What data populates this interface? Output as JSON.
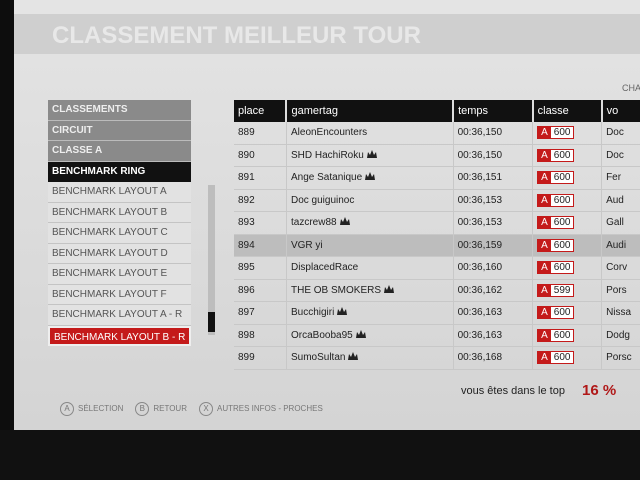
{
  "header": {
    "title": "CLASSEMENT MEILLEUR TOUR",
    "corner_label": "CHA"
  },
  "menu": {
    "filters": [
      "CLASSEMENTS",
      "CIRCUIT",
      "CLASSE A"
    ],
    "track": "BENCHMARK RING",
    "layouts": [
      "BENCHMARK LAYOUT A",
      "BENCHMARK LAYOUT B",
      "BENCHMARK LAYOUT C",
      "BENCHMARK LAYOUT D",
      "BENCHMARK LAYOUT E",
      "BENCHMARK LAYOUT F",
      "BENCHMARK LAYOUT A - R"
    ],
    "selected_layout": "BENCHMARK LAYOUT B - R"
  },
  "table": {
    "columns": [
      "place",
      "gamertag",
      "temps",
      "classe",
      "vo"
    ],
    "rows": [
      {
        "place": 889,
        "gamertag": "AleonEncounters",
        "temps": "00:36,150",
        "class_letter": "A",
        "class_number": 600,
        "car": "Doc"
      },
      {
        "place": 890,
        "gamertag": "SHD HachiRoku",
        "temps": "00:36,150",
        "class_letter": "A",
        "class_number": 600,
        "car": "Doc"
      },
      {
        "place": 891,
        "gamertag": "Ange Satanique",
        "temps": "00:36,151",
        "class_letter": "A",
        "class_number": 600,
        "car": "Fer"
      },
      {
        "place": 892,
        "gamertag": "Doc guiguinoc",
        "temps": "00:36,153",
        "class_letter": "A",
        "class_number": 600,
        "car": "Aud"
      },
      {
        "place": 893,
        "gamertag": "tazcrew88",
        "temps": "00:36,153",
        "class_letter": "A",
        "class_number": 600,
        "car": "Gall"
      },
      {
        "place": 894,
        "gamertag": "VGR yi",
        "temps": "00:36,159",
        "class_letter": "A",
        "class_number": 600,
        "car": "Audi"
      },
      {
        "place": 895,
        "gamertag": "DisplacedRace",
        "temps": "00:36,160",
        "class_letter": "A",
        "class_number": 600,
        "car": "Corv"
      },
      {
        "place": 896,
        "gamertag": "THE OB SMOKERS",
        "temps": "00:36,162",
        "class_letter": "A",
        "class_number": 599,
        "car": "Pors"
      },
      {
        "place": 897,
        "gamertag": "Bucchigiri",
        "temps": "00:36,163",
        "class_letter": "A",
        "class_number": 600,
        "car": "Nissa"
      },
      {
        "place": 898,
        "gamertag": "OrcaBooba95",
        "temps": "00:36,163",
        "class_letter": "A",
        "class_number": 600,
        "car": "Dodg"
      },
      {
        "place": 899,
        "gamertag": "SumoSultan",
        "temps": "00:36,168",
        "class_letter": "A",
        "class_number": 600,
        "car": "Porsc"
      }
    ]
  },
  "footer": {
    "rank_text": "vous êtes dans le top",
    "rank_value": "16 %"
  },
  "buttons": [
    {
      "key": "A",
      "label": "SÉLECTION"
    },
    {
      "key": "B",
      "label": "RETOUR"
    },
    {
      "key": "X",
      "label": "AUTRES INFOS - PROCHES"
    }
  ]
}
